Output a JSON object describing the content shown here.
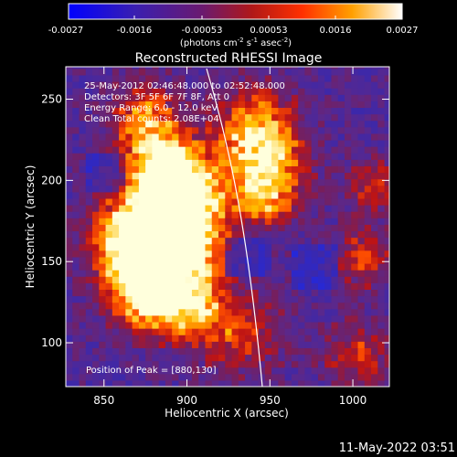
{
  "colorbar": {
    "ticks": [
      "-0.0027",
      "-0.0016",
      "-0.00053",
      "0.00053",
      "0.0016",
      "0.0027"
    ],
    "unit_label": "(photons cm",
    "unit_sup1": "-2",
    "unit_mid": " s",
    "unit_sup2": "-1",
    "unit_end": " asec",
    "unit_sup3": "-2",
    "unit_close": ")"
  },
  "chart_data": {
    "type": "heatmap",
    "title": "Reconstructed RHESSI Image",
    "xlabel": "Heliocentric X (arcsec)",
    "ylabel": "Heliocentric Y (arcsec)",
    "xlim": [
      827,
      1022
    ],
    "ylim": [
      73,
      270
    ],
    "xticks": [
      850,
      900,
      950,
      1000
    ],
    "yticks": [
      100,
      150,
      200,
      250
    ],
    "value_range": [
      -0.0027,
      0.0027
    ],
    "peak": {
      "x": 880,
      "y": 130
    },
    "info_lines": [
      "25-May-2012 02:46:48.000 to 02:52:48.000",
      "Detectors: 3F 5F 6F 7F 8F, Att 0",
      "Energy Range: 6.0 - 12.0 keV",
      "Clean     Total counts: 2.08E+04"
    ],
    "peak_label": "Position of Peak = [880,130]",
    "colors": {
      "colormap": [
        "#0000ff",
        "#3a28b4",
        "#5a2a8c",
        "#7a2a5a",
        "#c01818",
        "#ff6000",
        "#ffc000",
        "#ffffff"
      ]
    }
  },
  "footer": {
    "timestamp": "11-May-2022 03:51"
  }
}
